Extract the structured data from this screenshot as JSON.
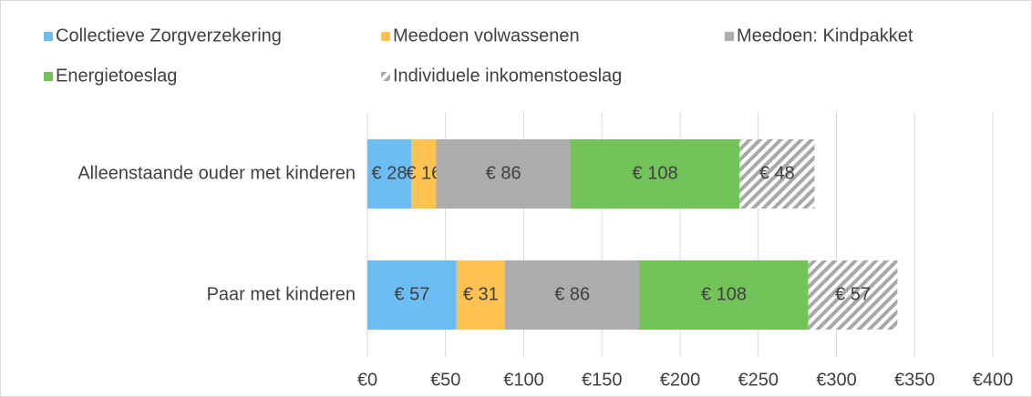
{
  "chart_data": {
    "type": "stacked-barh",
    "categories": [
      "Alleenstaande ouder met kinderen",
      "Paar met kinderen"
    ],
    "series": [
      {
        "name": "Collectieve Zorgverzekering",
        "color": "#6cbdf3",
        "values": [
          28,
          57
        ],
        "value_labels": [
          "€ 28",
          "€ 57"
        ]
      },
      {
        "name": "Meedoen volwassenen",
        "color": "#fdc24f",
        "values": [
          16,
          31
        ],
        "value_labels": [
          "€ 16",
          "€ 31"
        ]
      },
      {
        "name": "Meedoen: Kindpakket",
        "color": "#acacac",
        "values": [
          86,
          86
        ],
        "value_labels": [
          "€ 86",
          "€ 86"
        ]
      },
      {
        "name": "Energietoeslag",
        "color": "#72c35a",
        "values": [
          108,
          108
        ],
        "value_labels": [
          "€ 108",
          "€ 108"
        ]
      },
      {
        "name": "Individuele inkomenstoeslag",
        "color": "#a8a8a8",
        "pattern": "hatch",
        "values": [
          48,
          57
        ],
        "value_labels": [
          "€ 48",
          "€ 57"
        ]
      }
    ],
    "xlim": [
      0,
      400
    ],
    "xticks": [
      {
        "value": 0,
        "label": "€0"
      },
      {
        "value": 50,
        "label": "€50"
      },
      {
        "value": 100,
        "label": "€100"
      },
      {
        "value": 150,
        "label": "€150"
      },
      {
        "value": 200,
        "label": "€200"
      },
      {
        "value": 250,
        "label": "€250"
      },
      {
        "value": 300,
        "label": "€300"
      },
      {
        "value": 350,
        "label": "€350"
      },
      {
        "value": 400,
        "label": "€400"
      }
    ],
    "grid": true,
    "legend": "top"
  }
}
